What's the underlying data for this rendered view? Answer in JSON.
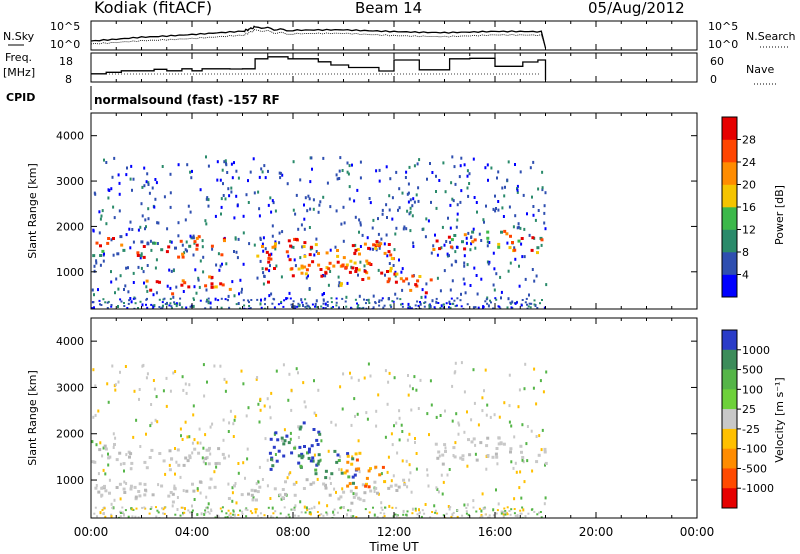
{
  "header": {
    "station": "Kodiak (fitACF)",
    "beam": "Beam 14",
    "date": "05/Aug/2012"
  },
  "panel_labels": {
    "nsky": "N.Sky",
    "nsearch": "N.Search",
    "freq": "Freq.",
    "freq_unit": "[MHz]",
    "nave": "Nave",
    "cpid": "CPID",
    "cpid_text": "normalsound (fast) -157 RF"
  },
  "axes": {
    "xlabel": "Time UT",
    "xticks": [
      "00:00",
      "04:00",
      "08:00",
      "12:00",
      "16:00",
      "20:00",
      "00:00"
    ],
    "ylabel": "Slant Range [km]",
    "yticks": [
      "1000",
      "2000",
      "3000",
      "4000"
    ],
    "noise_left_ticks": [
      "10^5",
      "10^0"
    ],
    "noise_right_ticks": [
      "10^5",
      "10^0"
    ],
    "freq_left_ticks": [
      "18",
      "8"
    ],
    "freq_right_ticks": [
      "60",
      "0"
    ]
  },
  "colorbars": {
    "power": {
      "label": "Power [dB]",
      "ticks": [
        "4",
        "8",
        "12",
        "16",
        "20",
        "24",
        "28"
      ],
      "colors": [
        "#0000ff",
        "#2f4fb0",
        "#2a8a6a",
        "#3cb84a",
        "#f5c400",
        "#ff8c00",
        "#ff4500",
        "#e60000"
      ]
    },
    "velocity": {
      "label": "Velocity [m s⁻¹]",
      "ticks": [
        "1000",
        "500",
        "100",
        "25",
        "-25",
        "-100",
        "-500",
        "-1000"
      ],
      "colors": [
        "#2a3cc8",
        "#3c8c5a",
        "#55b548",
        "#6ed13a",
        "#c8c8c8",
        "#ffc000",
        "#ff8c00",
        "#ff4a00",
        "#e60000"
      ]
    }
  },
  "chart_data": [
    {
      "type": "line",
      "title": "N.Sky / N.Search",
      "ylim_label": [
        "10^0",
        "10^5"
      ],
      "series": [
        {
          "name": "N.Sky",
          "style": "solid"
        },
        {
          "name": "N.Search",
          "style": "dotted"
        }
      ],
      "x": [
        "00:00",
        "02:00",
        "04:00",
        "06:00",
        "06:30",
        "08:00",
        "10:00",
        "12:00",
        "14:00",
        "16:00",
        "18:00"
      ],
      "sky_level": [
        1.4,
        2.3,
        2.8,
        3.3,
        4.2,
        3.4,
        3.6,
        3.4,
        3.2,
        3.3,
        3.1
      ],
      "search_level": [
        0.8,
        1.6,
        2.0,
        2.5,
        3.6,
        2.7,
        2.9,
        2.6,
        2.4,
        2.6,
        2.4
      ]
    },
    {
      "type": "line",
      "title": "Freq. [MHz] / Nave",
      "ylim": [
        8,
        18
      ],
      "x_hours": [
        0.0,
        0.6,
        1.2,
        1.9,
        2.5,
        3.0,
        3.6,
        4.0,
        4.4,
        5.0,
        5.5,
        6.0,
        6.5,
        7.0,
        7.8,
        9.0,
        9.5,
        10.2,
        11.4,
        12.0,
        13.0,
        14.2,
        15.0,
        16.0,
        17.1,
        17.7,
        18.0
      ],
      "freq_mhz": [
        10.5,
        11.1,
        11.7,
        11.7,
        12.3,
        11.7,
        12.5,
        11.7,
        12.5,
        12.5,
        12.4,
        12.5,
        16.5,
        17.3,
        16.5,
        15.3,
        14.0,
        13.0,
        11.6,
        16.0,
        12.1,
        16.5,
        16.7,
        13.5,
        15.2,
        16.0,
        9.0
      ],
      "nave_level": 0.12
    },
    {
      "type": "heatmap",
      "title": "Power [dB]",
      "xlabel": "Time UT",
      "ylabel": "Slant Range [km]",
      "xlim": [
        "00:00",
        "00:00"
      ],
      "ylim": [
        180,
        4500
      ],
      "data_end": "18:00",
      "bands": [
        {
          "t0": 0.0,
          "t1": 5.5,
          "r0": 1350,
          "r1": 1750,
          "class": "weak-strong"
        },
        {
          "t0": 2.0,
          "t1": 5.5,
          "r0": 600,
          "r1": 900,
          "class": "strong"
        },
        {
          "t0": 6.5,
          "t1": 12.0,
          "r0": 800,
          "r1": 1700,
          "class": "strong"
        },
        {
          "t0": 8.5,
          "t1": 10.5,
          "r0": 950,
          "r1": 1250,
          "class": "strongest"
        },
        {
          "t0": 11.5,
          "t1": 13.5,
          "r0": 550,
          "r1": 950,
          "class": "strong"
        },
        {
          "t0": 13.5,
          "t1": 18.0,
          "r0": 1500,
          "r1": 1900,
          "class": "medium-strong"
        }
      ]
    },
    {
      "type": "heatmap",
      "title": "Velocity [m s⁻¹]",
      "xlabel": "Time UT",
      "ylabel": "Slant Range [km]",
      "xlim": [
        "00:00",
        "00:00"
      ],
      "ylim": [
        180,
        4500
      ],
      "data_end": "18:00",
      "bands": [
        {
          "t0": 0.0,
          "t1": 5.5,
          "r0": 1300,
          "r1": 1750,
          "class": "ground-scatter"
        },
        {
          "t0": 0.0,
          "t1": 12.5,
          "r0": 600,
          "r1": 1000,
          "class": "ground-scatter"
        },
        {
          "t0": 7.0,
          "t1": 9.0,
          "r0": 1300,
          "r1": 2200,
          "class": "positive-1000"
        },
        {
          "t0": 8.0,
          "t1": 10.5,
          "r0": 1000,
          "r1": 1700,
          "class": "positive-500"
        },
        {
          "t0": 10.0,
          "t1": 11.6,
          "r0": 900,
          "r1": 1700,
          "class": "negative-500"
        },
        {
          "t0": 13.5,
          "t1": 18.0,
          "r0": 1400,
          "r1": 1900,
          "class": "ground-scatter"
        }
      ]
    }
  ]
}
